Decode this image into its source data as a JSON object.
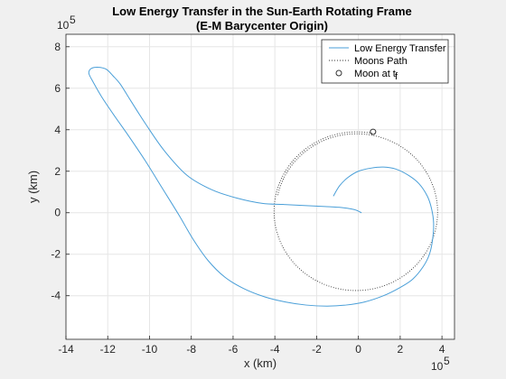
{
  "chart_data": {
    "type": "line",
    "title_line1": "Low Energy Transfer in the Sun-Earth Rotating Frame",
    "title_line2": "(E-M Barycenter Origin)",
    "xlabel": "x (km)",
    "ylabel": "y (km)",
    "x_multiplier": "10",
    "x_multiplier_exp": "5",
    "y_multiplier": "10",
    "y_multiplier_exp": "5",
    "xlim": [
      -14,
      4.6
    ],
    "ylim": [
      -6.1,
      8.6
    ],
    "xticks": [
      -14,
      -12,
      -10,
      -8,
      -6,
      -4,
      -2,
      0,
      2,
      4
    ],
    "yticks": [
      -4,
      -2,
      0,
      2,
      4,
      6,
      8
    ],
    "grid": true,
    "legend_position": "top-right",
    "colors": {
      "transfer": "#4a9fd8",
      "moon_path": "#333333",
      "moon_marker": "#333333",
      "background": "#f0f0f0",
      "axes_bg": "#ffffff",
      "grid": "#e6e6e6"
    },
    "series": [
      {
        "name": "Low Energy Transfer",
        "style": "solid",
        "x": [
          -1.2,
          -0.9,
          -0.5,
          0.0,
          0.6,
          1.2,
          1.8,
          2.4,
          2.9,
          3.3,
          3.5,
          3.6,
          3.55,
          3.4,
          3.1,
          2.6,
          2.0,
          1.2,
          0.3,
          -0.6,
          -1.5,
          -2.5,
          -3.5,
          -4.5,
          -5.5,
          -6.4,
          -7.2,
          -7.9,
          -8.6,
          -9.4,
          -10.2,
          -11.0,
          -11.7,
          -12.3,
          -12.7,
          -12.9,
          -12.85,
          -12.65,
          -12.35,
          -12.05,
          -11.75,
          -11.4,
          -10.9,
          -10.2,
          -9.3,
          -8.2,
          -7.0,
          -5.8,
          -4.6,
          -3.6,
          -2.6,
          -1.6,
          -0.8,
          -0.2,
          0.15
        ],
        "y": [
          0.8,
          1.3,
          1.7,
          2.0,
          2.15,
          2.2,
          2.1,
          1.8,
          1.4,
          0.8,
          0.2,
          -0.5,
          -1.3,
          -2.0,
          -2.6,
          -3.2,
          -3.6,
          -4.0,
          -4.3,
          -4.45,
          -4.5,
          -4.45,
          -4.3,
          -4.05,
          -3.65,
          -3.1,
          -2.3,
          -1.3,
          -0.1,
          1.2,
          2.5,
          3.7,
          4.7,
          5.6,
          6.3,
          6.7,
          6.9,
          7.0,
          7.0,
          6.9,
          6.6,
          6.2,
          5.4,
          4.3,
          3.0,
          1.8,
          1.1,
          0.7,
          0.45,
          0.4,
          0.35,
          0.3,
          0.25,
          0.15,
          0.0
        ]
      },
      {
        "name": "Moons Path",
        "style": "dotted",
        "center": [
          -0.1,
          0.05
        ],
        "radius": 3.85,
        "turns": 1.25
      }
    ],
    "marker": {
      "name": "Moon at t",
      "subscript": "f",
      "x": 0.7,
      "y": 3.9
    }
  }
}
